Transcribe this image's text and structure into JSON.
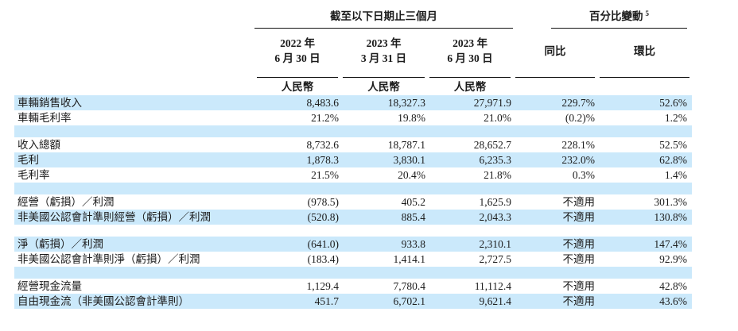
{
  "colors": {
    "highlight": "#cbe9fb",
    "text": "#1b1b1b"
  },
  "header": {
    "period_group": "截至以下日期止三個月",
    "pct_group": "百分比變動",
    "pct_group_footnote": "5",
    "date_columns": [
      {
        "year": "2022 年",
        "date": "6 月 30 日"
      },
      {
        "year": "2023 年",
        "date": "3 月 31 日"
      },
      {
        "year": "2023 年",
        "date": "6 月 30 日"
      }
    ],
    "yoy": "同比",
    "qoq": "環比",
    "currency": "人民幣"
  },
  "rows": [
    {
      "label": "車輛銷售收入",
      "values": [
        "8,483.6",
        "18,327.3",
        "27,971.9",
        "229.7%",
        "52.6%"
      ]
    },
    {
      "label": "車輛毛利率",
      "values": [
        "21.2%",
        "19.8%",
        "21.0%",
        "(0.2)%",
        "1.2%"
      ]
    },
    {
      "spacer": true
    },
    {
      "label": "收入總額",
      "values": [
        "8,732.6",
        "18,787.1",
        "28,652.7",
        "228.1%",
        "52.5%"
      ]
    },
    {
      "label": "毛利",
      "values": [
        "1,878.3",
        "3,830.1",
        "6,235.3",
        "232.0%",
        "62.8%"
      ]
    },
    {
      "label": "毛利率",
      "values": [
        "21.5%",
        "20.4%",
        "21.8%",
        "0.3%",
        "1.4%"
      ]
    },
    {
      "spacer": true
    },
    {
      "label": "經營（虧損）／利潤",
      "values": [
        "(978.5)",
        "405.2",
        "1,625.9",
        "不適用",
        "301.3%"
      ]
    },
    {
      "label": "非美國公認會計準則經營（虧損）／利潤",
      "values": [
        "(520.8)",
        "885.4",
        "2,043.3",
        "不適用",
        "130.8%"
      ]
    },
    {
      "spacer": true
    },
    {
      "label": "淨（虧損）／利潤",
      "values": [
        "(641.0)",
        "933.8",
        "2,310.1",
        "不適用",
        "147.4%"
      ]
    },
    {
      "label": "非美國公認會計準則淨（虧損）／利潤",
      "values": [
        "(183.4)",
        "1,414.1",
        "2,727.5",
        "不適用",
        "92.9%"
      ]
    },
    {
      "spacer": true
    },
    {
      "label": "經營現金流量",
      "values": [
        "1,129.4",
        "7,780.4",
        "11,112.4",
        "不適用",
        "42.8%"
      ]
    },
    {
      "label": "自由現金流（非美國公認會計準則）",
      "values": [
        "451.7",
        "6,702.1",
        "9,621.4",
        "不適用",
        "43.6%"
      ]
    }
  ]
}
